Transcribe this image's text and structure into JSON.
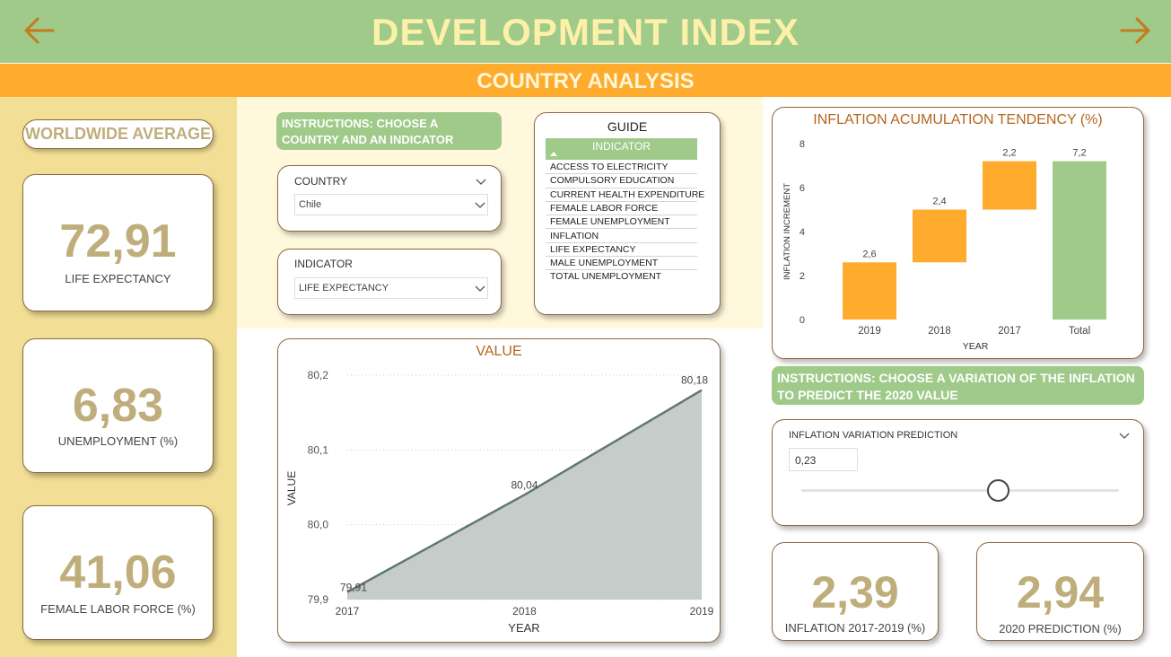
{
  "header": {
    "title": "DEVELOPMENT INDEX",
    "subtitle": "COUNTRY ANALYSIS",
    "arrow_color": "#c47a1a"
  },
  "worldwide": {
    "title": "WORLDWIDE AVERAGE",
    "kpis": [
      {
        "value": "72,91",
        "label": "LIFE EXPECTANCY"
      },
      {
        "value": "6,83",
        "label": "UNEMPLOYMENT (%)"
      },
      {
        "value": "41,06",
        "label": "FEMALE LABOR FORCE (%)"
      }
    ]
  },
  "instructions": {
    "select": "INSTRUCTIONS: CHOOSE A COUNTRY AND AN INDICATOR",
    "predict": "INSTRUCTIONS: CHOOSE A VARIATION OF THE INFLATION TO PREDICT THE 2020 VALUE"
  },
  "slicers": {
    "country": {
      "title": "COUNTRY",
      "value": "Chile"
    },
    "indicator": {
      "title": "INDICATOR",
      "value": "LIFE EXPECTANCY"
    }
  },
  "guide": {
    "title": "GUIDE",
    "header": "INDICATOR",
    "rows": [
      "ACCESS TO ELECTRICITY",
      "COMPULSORY EDUCATION",
      "CURRENT HEALTH EXPENDITURE",
      "FEMALE LABOR FORCE",
      "FEMALE UNEMPLOYMENT",
      "INFLATION",
      "LIFE EXPECTANCY",
      "MALE UNEMPLOYMENT",
      "TOTAL UNEMPLOYMENT"
    ]
  },
  "prediction": {
    "title": "INFLATION VARIATION PREDICTION",
    "value": "0,23",
    "slider_fraction": 0.62
  },
  "bottom_kpis": [
    {
      "value": "2,39",
      "label": "INFLATION 2017-2019 (%)"
    },
    {
      "value": "2,94",
      "label": "2020 PREDICTION (%)"
    }
  ],
  "colors": {
    "orange": "#ffab2e",
    "green": "#9fca8a",
    "area_fill": "#c5ccc9",
    "area_line": "#607873"
  },
  "chart_data": [
    {
      "type": "area",
      "title": "VALUE",
      "xlabel": "YEAR",
      "ylabel": "VALUE",
      "x": [
        "2017",
        "2018",
        "2019"
      ],
      "values": [
        79.91,
        80.04,
        80.18
      ],
      "data_labels": [
        "79,91",
        "80,04",
        "80,18"
      ],
      "yticks": [
        "79,9",
        "80,0",
        "80,1",
        "80,2"
      ],
      "ytick_values": [
        79.9,
        80.0,
        80.1,
        80.2
      ],
      "ylim": [
        79.9,
        80.2
      ],
      "grid": true
    },
    {
      "type": "waterfall",
      "title": "INFLATION ACUMULATION TENDENCY (%)",
      "xlabel": "YEAR",
      "ylabel": "INFLATION INCREMENT",
      "categories": [
        "2019",
        "2018",
        "2017",
        "Total"
      ],
      "values": [
        2.6,
        2.4,
        2.2,
        7.2
      ],
      "data_labels": [
        "2,6",
        "2,4",
        "2,2",
        "7,2"
      ],
      "yticks": [
        "0",
        "2",
        "4",
        "6",
        "8"
      ],
      "ytick_values": [
        0,
        2,
        4,
        6,
        8
      ],
      "ylim": [
        0,
        8
      ],
      "grid": false
    }
  ]
}
